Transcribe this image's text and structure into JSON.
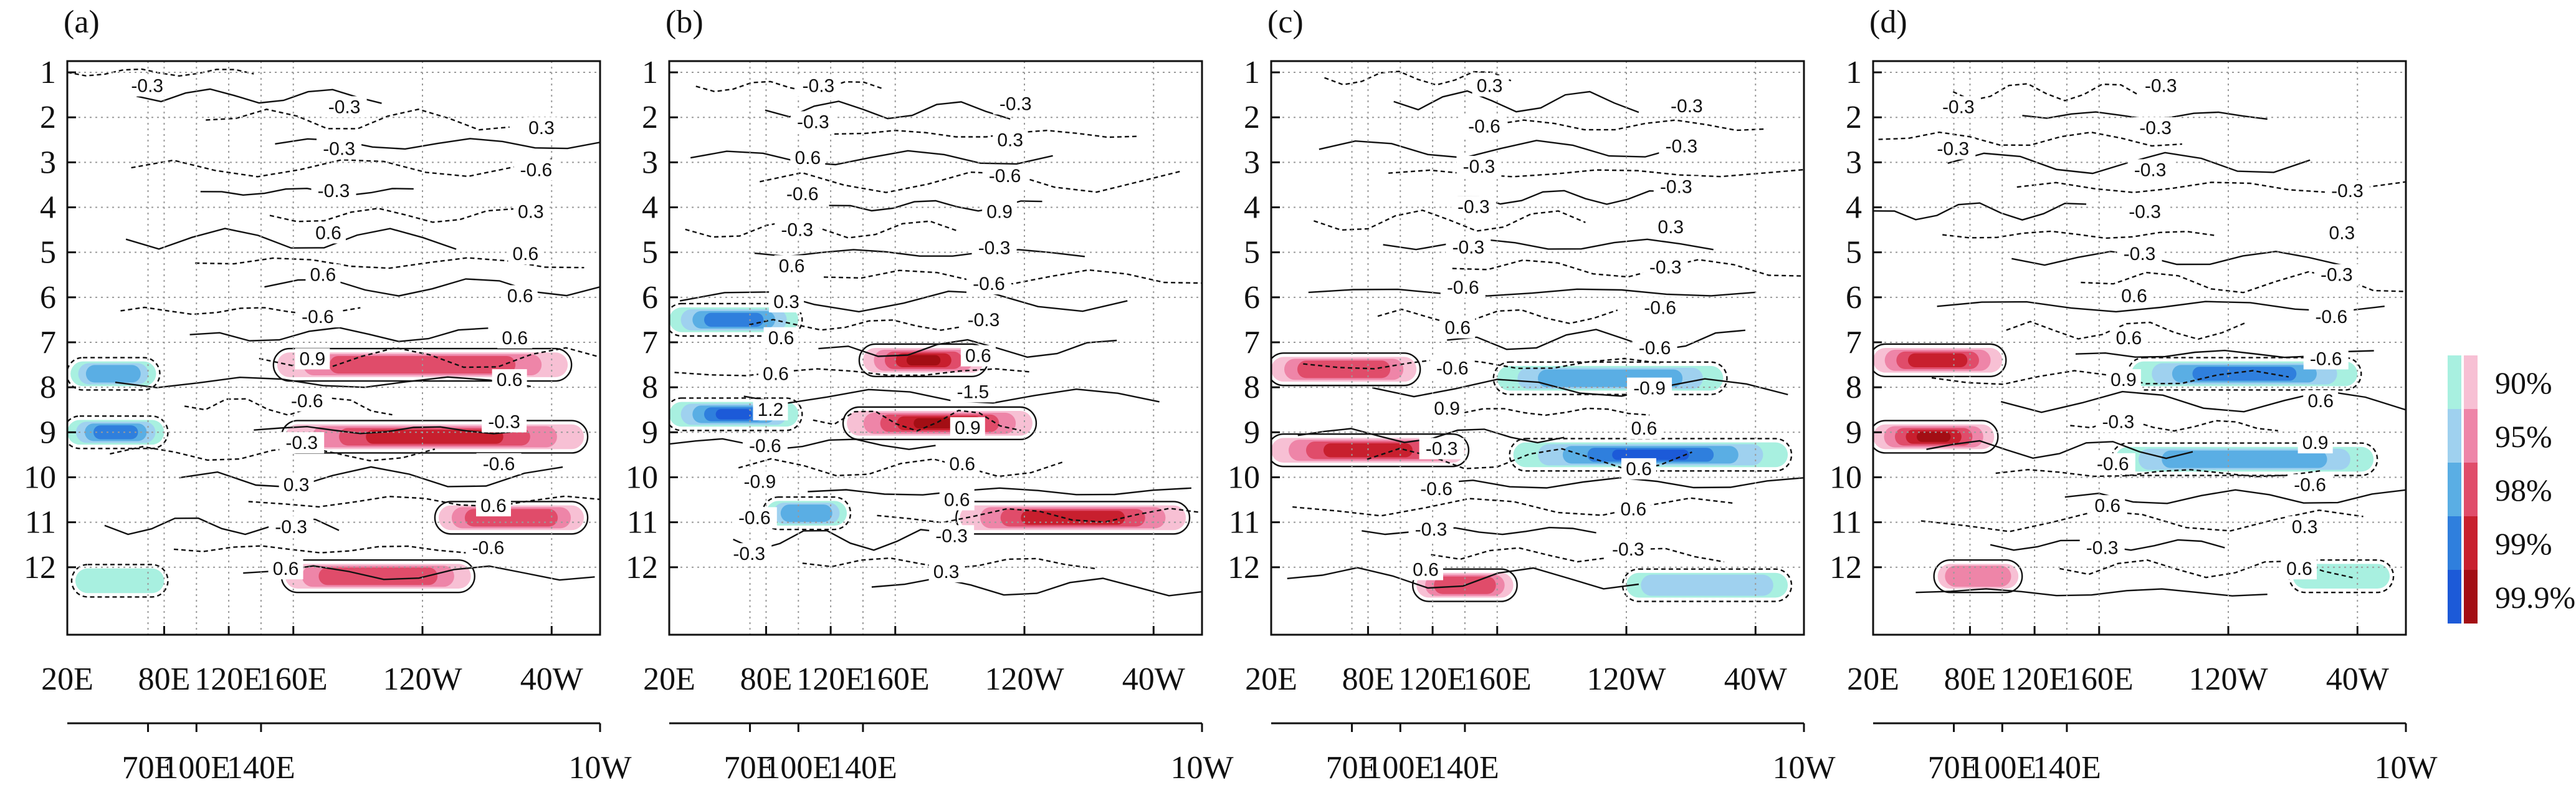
{
  "chart_data": [
    {
      "panel": "(a)",
      "type": "heatmap",
      "y_ticks": [
        "1",
        "2",
        "3",
        "4",
        "5",
        "6",
        "7",
        "8",
        "9",
        "10",
        "11",
        "12"
      ],
      "x_ticks_top": [
        "20E",
        "80E",
        "120E",
        "160E",
        "120W",
        "40W"
      ],
      "x_ticks_bottom": [
        "70E",
        "100E",
        "140E",
        "10W"
      ],
      "contour_labels": [
        "-0.3",
        "-0.3",
        "0.3",
        "-0.3",
        "-0.6",
        "-0.3",
        "0.3",
        "0.6",
        "0.6",
        "0.6",
        "0.6",
        "-0.6",
        "0.6",
        "0.9",
        "0.6",
        "-0.6",
        "-0.3",
        "-0.3",
        "-0.6",
        "0.3",
        "0.6",
        "-0.3",
        "-0.6",
        "0.6"
      ],
      "features": [
        {
          "kind": "pos",
          "level": 3,
          "month": 7.5,
          "lon_start": 150,
          "lon_end": 330
        },
        {
          "kind": "pos",
          "level": 4,
          "month": 9.1,
          "lon_start": 155,
          "lon_end": 340
        },
        {
          "kind": "pos",
          "level": 3,
          "month": 10.9,
          "lon_start": 250,
          "lon_end": 340
        },
        {
          "kind": "pos",
          "level": 3,
          "month": 12.2,
          "lon_start": 155,
          "lon_end": 270
        },
        {
          "kind": "neg",
          "level": 3,
          "month": 7.7,
          "lon_start": 22,
          "lon_end": 75
        },
        {
          "kind": "neg",
          "level": 4,
          "month": 9.0,
          "lon_start": 20,
          "lon_end": 80
        },
        {
          "kind": "neg",
          "level": 1,
          "month": 12.3,
          "lon_start": 25,
          "lon_end": 80
        }
      ]
    },
    {
      "panel": "(b)",
      "type": "heatmap",
      "y_ticks": [
        "1",
        "2",
        "3",
        "4",
        "5",
        "6",
        "7",
        "8",
        "9",
        "10",
        "11",
        "12"
      ],
      "x_ticks_top": [
        "20E",
        "80E",
        "120E",
        "160E",
        "120W",
        "40W"
      ],
      "x_ticks_bottom": [
        "70E",
        "100E",
        "140E",
        "10W"
      ],
      "contour_labels": [
        "-0.3",
        "-0.3",
        "-0.3",
        "0.3",
        "0.6",
        "-0.6",
        "-0.6",
        "0.9",
        "-0.3",
        "-0.3",
        "0.6",
        "-0.6",
        "0.3",
        "-0.3",
        "0.6",
        "0.6",
        "0.6",
        "-1.5",
        "1.2",
        "0.9",
        "-0.6",
        "0.6",
        "-0.9",
        "0.6",
        "-0.6",
        "-0.3",
        "-0.3",
        "0.3"
      ],
      "features": [
        {
          "kind": "pos",
          "level": 5,
          "month": 7.4,
          "lon_start": 140,
          "lon_end": 215
        },
        {
          "kind": "pos",
          "level": 5,
          "month": 8.8,
          "lon_start": 130,
          "lon_end": 245
        },
        {
          "kind": "pos",
          "level": 4,
          "month": 10.9,
          "lon_start": 200,
          "lon_end": 340
        },
        {
          "kind": "neg",
          "level": 4,
          "month": 6.5,
          "lon_start": 20,
          "lon_end": 100
        },
        {
          "kind": "neg",
          "level": 5,
          "month": 8.6,
          "lon_start": 20,
          "lon_end": 100
        },
        {
          "kind": "neg",
          "level": 3,
          "month": 10.8,
          "lon_start": 80,
          "lon_end": 130
        }
      ]
    },
    {
      "panel": "(c)",
      "type": "heatmap",
      "y_ticks": [
        "1",
        "2",
        "3",
        "4",
        "5",
        "6",
        "7",
        "8",
        "9",
        "10",
        "11",
        "12"
      ],
      "x_ticks_top": [
        "20E",
        "80E",
        "120E",
        "160E",
        "120W",
        "40W"
      ],
      "x_ticks_bottom": [
        "70E",
        "100E",
        "140E",
        "10W"
      ],
      "contour_labels": [
        "0.3",
        "-0.3",
        "-0.6",
        "-0.3",
        "-0.3",
        "-0.3",
        "-0.3",
        "0.3",
        "-0.3",
        "-0.3",
        "-0.6",
        "-0.6",
        "0.6",
        "-0.6",
        "-0.6",
        "-0.9",
        "0.9",
        "0.6",
        "-0.3",
        "0.6",
        "-0.6",
        "0.6",
        "-0.3",
        "-0.3",
        "0.6"
      ],
      "features": [
        {
          "kind": "pos",
          "level": 3,
          "month": 7.6,
          "lon_start": 20,
          "lon_end": 110
        },
        {
          "kind": "pos",
          "level": 4,
          "month": 9.4,
          "lon_start": 20,
          "lon_end": 140
        },
        {
          "kind": "pos",
          "level": 3,
          "month": 12.4,
          "lon_start": 110,
          "lon_end": 170
        },
        {
          "kind": "neg",
          "level": 3,
          "month": 7.8,
          "lon_start": 160,
          "lon_end": 300
        },
        {
          "kind": "neg",
          "level": 5,
          "month": 9.5,
          "lon_start": 170,
          "lon_end": 340
        },
        {
          "kind": "neg",
          "level": 2,
          "month": 12.4,
          "lon_start": 240,
          "lon_end": 340
        }
      ]
    },
    {
      "panel": "(d)",
      "type": "heatmap",
      "y_ticks": [
        "1",
        "2",
        "3",
        "4",
        "5",
        "6",
        "7",
        "8",
        "9",
        "10",
        "11",
        "12"
      ],
      "x_ticks_top": [
        "20E",
        "80E",
        "120E",
        "160E",
        "120W",
        "40W"
      ],
      "x_ticks_bottom": [
        "70E",
        "100E",
        "140E",
        "10W"
      ],
      "contour_labels": [
        "-0.3",
        "-0.3",
        "-0.3",
        "-0.3",
        "-0.3",
        "-0.3",
        "-0.3",
        "0.3",
        "-0.3",
        "-0.3",
        "0.6",
        "-0.6",
        "0.6",
        "-0.6",
        "0.9",
        "0.6",
        "-0.3",
        "0.9",
        "-0.6",
        "-0.6",
        "0.6",
        "0.3",
        "-0.3",
        "0.6"
      ],
      "features": [
        {
          "kind": "pos",
          "level": 4,
          "month": 7.4,
          "lon_start": 20,
          "lon_end": 100
        },
        {
          "kind": "pos",
          "level": 5,
          "month": 9.1,
          "lon_start": 20,
          "lon_end": 95
        },
        {
          "kind": "pos",
          "level": 2,
          "month": 12.2,
          "lon_start": 60,
          "lon_end": 110
        },
        {
          "kind": "neg",
          "level": 4,
          "month": 7.7,
          "lon_start": 180,
          "lon_end": 320
        },
        {
          "kind": "neg",
          "level": 3,
          "month": 9.6,
          "lon_start": 170,
          "lon_end": 330
        },
        {
          "kind": "neg",
          "level": 1,
          "month": 12.2,
          "lon_start": 280,
          "lon_end": 340
        }
      ]
    }
  ],
  "legend": {
    "levels": [
      "90%",
      "95%",
      "98%",
      "99%",
      "99.9%"
    ],
    "pos_colors": [
      "#f7c0d4",
      "#ee85a8",
      "#e04c6a",
      "#c81f2e",
      "#a30e14"
    ],
    "neg_colors": [
      "#a8f0e0",
      "#9fd1ef",
      "#5aaee4",
      "#2f7fdd",
      "#1c5ad8"
    ]
  }
}
